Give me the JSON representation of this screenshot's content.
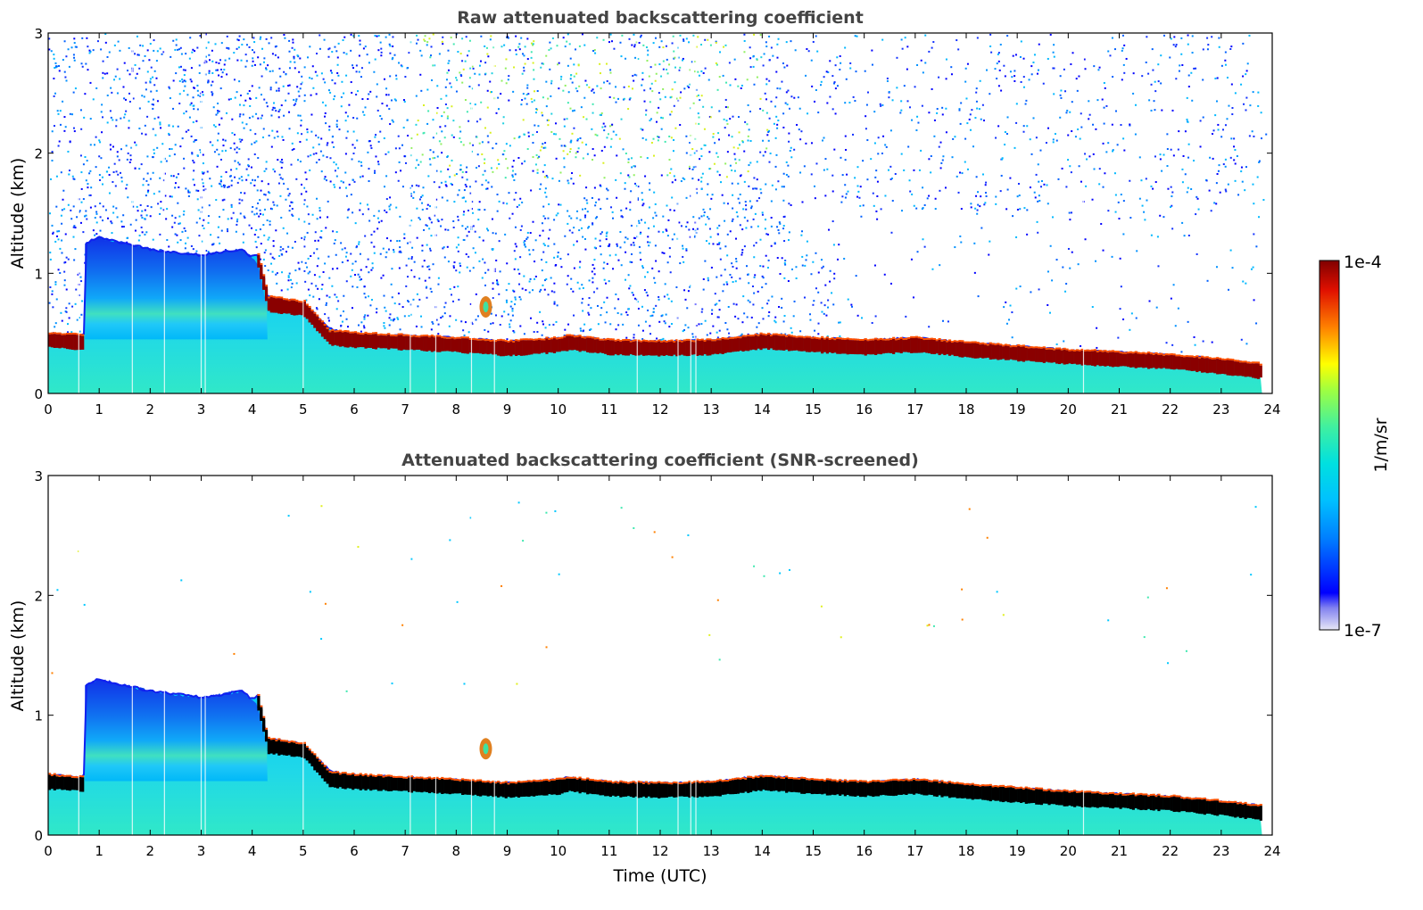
{
  "chart_data": [
    {
      "type": "heatmap",
      "title": "Raw attenuated backscattering coefficient",
      "xlabel": "",
      "ylabel": "Altitude (km)",
      "xlim": [
        0,
        24
      ],
      "ylim": [
        0,
        3
      ],
      "xticks": [
        "0",
        "1",
        "2",
        "3",
        "4",
        "5",
        "6",
        "7",
        "8",
        "9",
        "10",
        "11",
        "12",
        "13",
        "14",
        "15",
        "16",
        "17",
        "18",
        "19",
        "20",
        "21",
        "22",
        "23",
        "24"
      ],
      "yticks": [
        "0",
        "1",
        "2",
        "3"
      ],
      "data_end_time": 23.8,
      "aerosol_layer_top": {
        "x": [
          0,
          0.7,
          0.71,
          1,
          2,
          3,
          3.8,
          4.1,
          4.25,
          5,
          5.5,
          6
        ],
        "y": [
          0.5,
          0.5,
          1.25,
          1.3,
          1.2,
          1.15,
          1.2,
          1.1,
          0.8,
          0.75,
          0.55,
          0.45
        ]
      },
      "max_backscatter_layer": {
        "x": [
          0,
          0.7,
          4.1,
          4.3,
          5.0,
          5.5,
          6,
          7,
          8,
          9,
          10,
          10.2,
          11,
          12,
          13,
          14,
          15,
          16,
          17,
          18,
          19,
          20,
          21,
          22,
          23,
          23.8
        ],
        "y": [
          0.44,
          0.42,
          1.1,
          0.74,
          0.7,
          0.46,
          0.44,
          0.42,
          0.4,
          0.37,
          0.4,
          0.42,
          0.38,
          0.37,
          0.38,
          0.43,
          0.4,
          0.38,
          0.4,
          0.36,
          0.33,
          0.3,
          0.28,
          0.26,
          0.22,
          0.18
        ]
      },
      "noise": true
    },
    {
      "type": "heatmap",
      "title": "Attenuated backscattering coefficient (SNR-screened)",
      "xlabel": "Time (UTC)",
      "ylabel": "Altitude (km)",
      "xlim": [
        0,
        24
      ],
      "ylim": [
        0,
        3
      ],
      "xticks": [
        "0",
        "1",
        "2",
        "3",
        "4",
        "5",
        "6",
        "7",
        "8",
        "9",
        "10",
        "11",
        "12",
        "13",
        "14",
        "15",
        "16",
        "17",
        "18",
        "19",
        "20",
        "21",
        "22",
        "23",
        "24"
      ],
      "yticks": [
        "0",
        "1",
        "2",
        "3"
      ],
      "data_end_time": 23.8,
      "noise": false,
      "saturated_color": "#000000"
    }
  ],
  "colorbar": {
    "label": "1/m/sr",
    "max_label": "1e-4",
    "min_label": "1e-7",
    "colormap": "jet",
    "colors": [
      "#e6e6f6",
      "#0000ff",
      "#0090ff",
      "#00d8ff",
      "#40f0c0",
      "#a0ff60",
      "#ffe000",
      "#ff7000",
      "#e01000",
      "#800000"
    ]
  }
}
